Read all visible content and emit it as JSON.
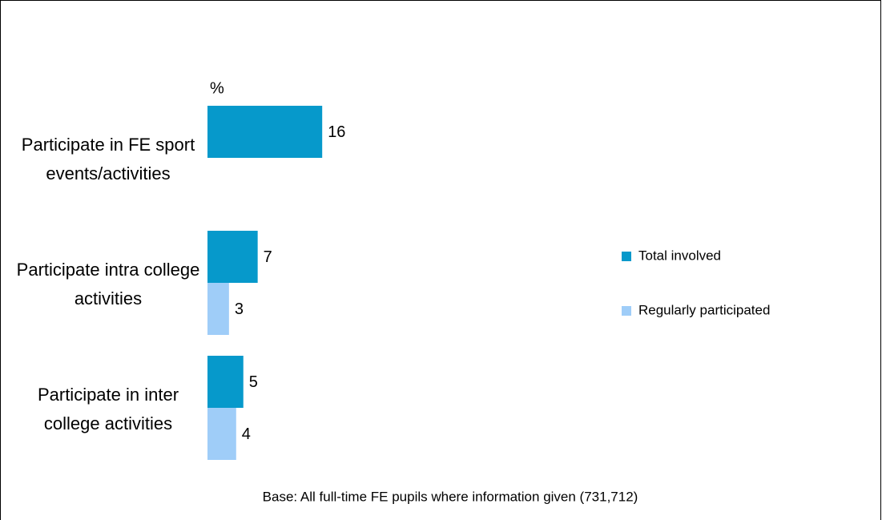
{
  "chart_data": {
    "type": "hbar",
    "unit_label": "%",
    "categories": [
      "Participate in FE sport events/activities",
      "Participate intra college activities",
      "Participate in inter college activities"
    ],
    "series": [
      {
        "name": "Total involved",
        "color": "#0699cb",
        "values": [
          16,
          7,
          5
        ]
      },
      {
        "name": "Regularly participated",
        "color": "#9fcdf8",
        "values": [
          null,
          3,
          4
        ]
      }
    ],
    "legend": "right",
    "footnote": "Base: All full-time FE pupils where information given (731,712)"
  }
}
